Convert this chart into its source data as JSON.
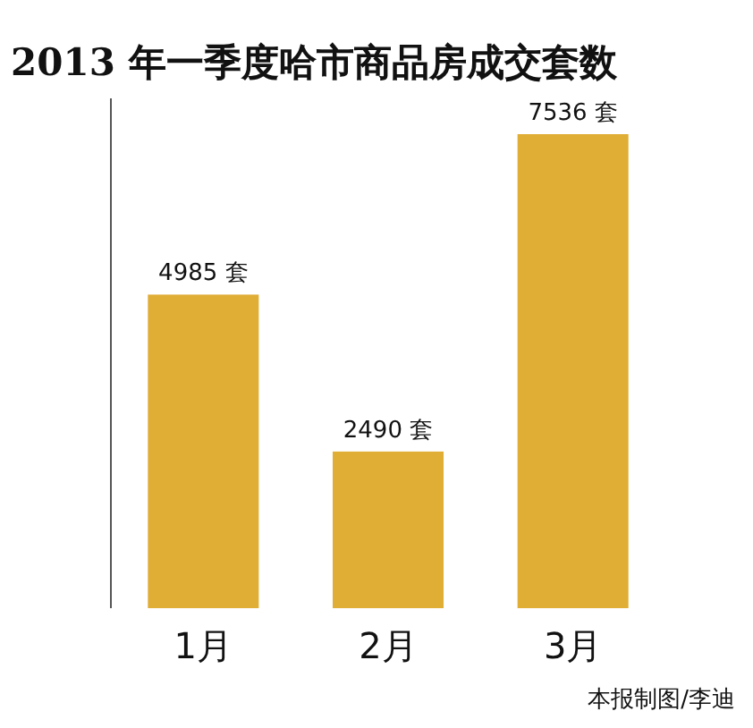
{
  "chart_data": {
    "type": "bar",
    "title": "2013 年一季度哈市商品房成交套数",
    "categories": [
      "1月",
      "2月",
      "3月"
    ],
    "values": [
      4985,
      2490,
      7536
    ],
    "value_labels": [
      "4985 套",
      "2490 套",
      "7536 套"
    ],
    "color": "#e0ad35",
    "annotations": [
      "本报制图/李迪"
    ]
  }
}
